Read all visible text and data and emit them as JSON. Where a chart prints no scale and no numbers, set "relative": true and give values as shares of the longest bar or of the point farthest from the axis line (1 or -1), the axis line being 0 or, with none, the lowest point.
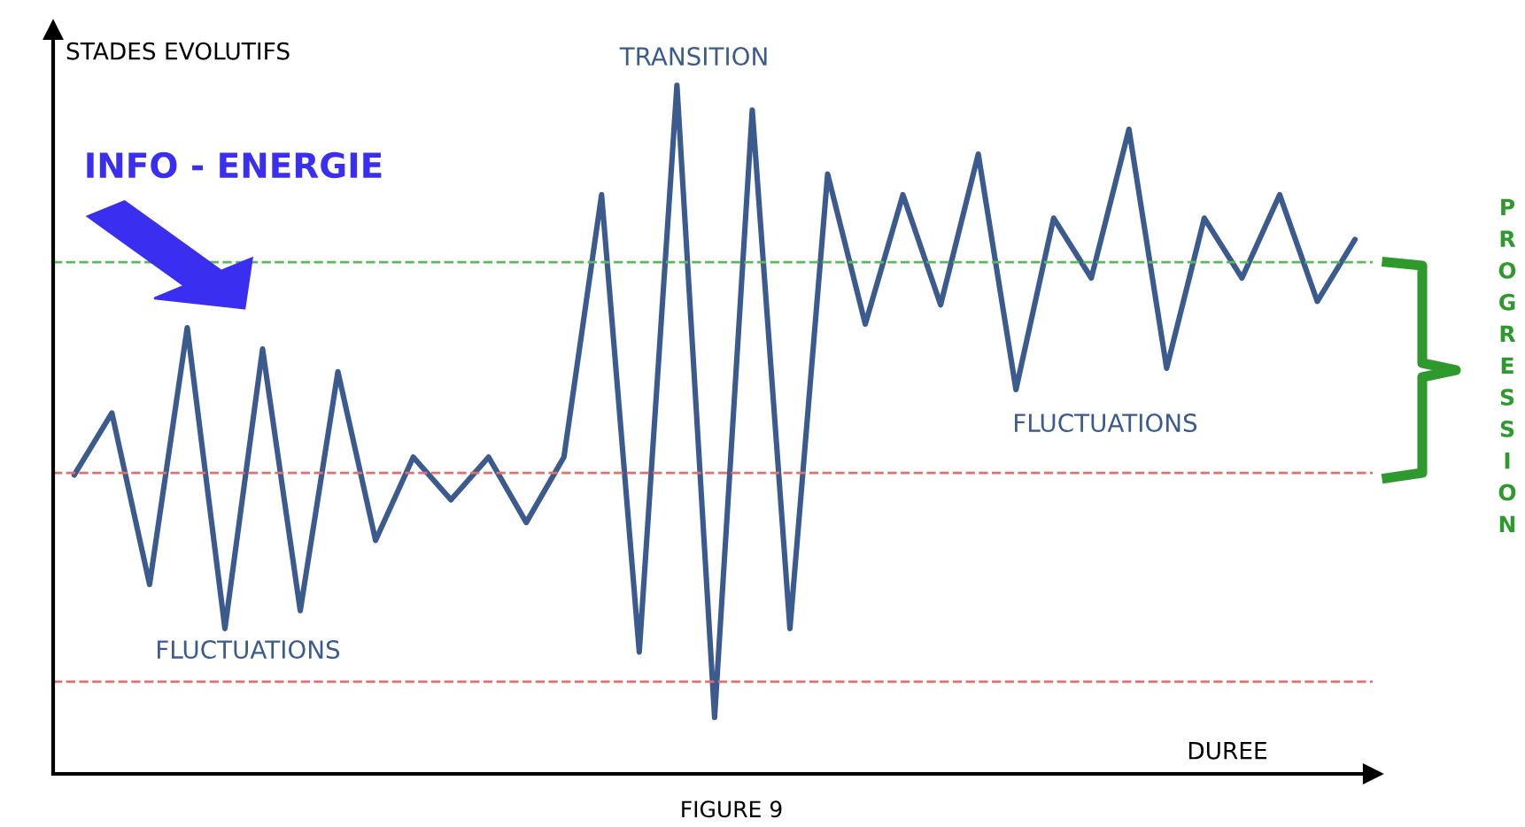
{
  "chart_data": {
    "type": "line",
    "relative": true,
    "ylabel": "STADES EVOLUTIFS",
    "xlabel": "DUREE",
    "categories": [
      null,
      null,
      null,
      null,
      null,
      null,
      null,
      null,
      null,
      null,
      null,
      null,
      null,
      null,
      null,
      null,
      null,
      null,
      null,
      null,
      null,
      null,
      null,
      null,
      null,
      null,
      null,
      null,
      null,
      null,
      null,
      null,
      null,
      null,
      null
    ],
    "series": [
      {
        "color": "#3b5b8e",
        "values": [
          0.434,
          0.524,
          0.275,
          0.648,
          0.211,
          0.617,
          0.237,
          0.584,
          0.339,
          0.46,
          0.398,
          0.46,
          0.365,
          0.46,
          0.841,
          0.177,
          1,
          0.082,
          0.964,
          0.211,
          0.871,
          0.653,
          0.841,
          0.681,
          0.9,
          0.558,
          0.807,
          0.72,
          0.936,
          0.589,
          0.807,
          0.72,
          0.841,
          0.686,
          0.776
        ]
      }
    ],
    "ref_lines": [
      {
        "axis": "y",
        "value": 0.743,
        "color": "#5cb85c",
        "line_style": "dashed"
      },
      {
        "axis": "y",
        "value": 0.437,
        "color": "#e07070",
        "line_style": "dashed"
      },
      {
        "axis": "y",
        "value": 0.134,
        "color": "#e07070",
        "line_style": "dashed"
      }
    ],
    "annotations": [
      "INFO - ENERGIE",
      "TRANSITION",
      "FLUCTUATIONS",
      "FLUCTUATIONS",
      "PROGRESSION",
      "FIGURE 9"
    ],
    "marker": "none",
    "line_style": "solid"
  }
}
